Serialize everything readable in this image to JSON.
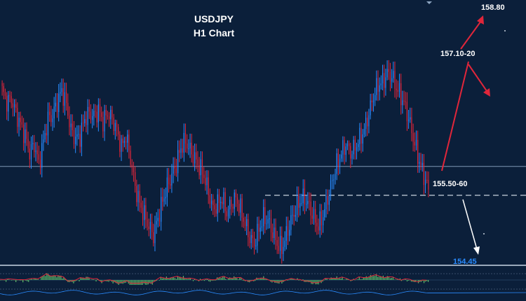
{
  "header": {
    "symbol": "USDJPY",
    "timeframe": "H1 Chart"
  },
  "colors": {
    "background": "#0b1f3a",
    "bull_candle": "#2a8cff",
    "bear_candle": "#e0263a",
    "target_arrow_up": "#e0263a",
    "target_arrow_down": "#ffffff",
    "oscillator_positive": "#5fbf6a",
    "horizontal_line": "#8ea6c2"
  },
  "chart_data": {
    "type": "candlestick",
    "title": "USDJPY H1 Chart",
    "xlabel": "",
    "ylabel": "",
    "ylim": [
      154.4,
      158.9
    ],
    "horizontal_lines": [
      {
        "level": 156.06,
        "style": "solid"
      },
      {
        "level": 155.55,
        "style": "dashed"
      }
    ],
    "annotations": [
      {
        "text": "158.80",
        "value": 158.8,
        "color": "#ffffff",
        "role": "upside-target"
      },
      {
        "text": "157.10-20",
        "value": 157.15,
        "color": "#ffffff",
        "role": "intermediate-target"
      },
      {
        "text": "155.50-60",
        "value": 155.55,
        "color": "#ffffff",
        "role": "support"
      },
      {
        "text": "154.45",
        "value": 154.45,
        "color": "#2a8cff",
        "role": "downside-target"
      }
    ],
    "closes": [
      157.4,
      157.2,
      157.25,
      157.0,
      156.8,
      156.6,
      156.3,
      156.45,
      156.1,
      156.5,
      156.9,
      156.95,
      157.2,
      157.4,
      157.15,
      156.7,
      156.55,
      156.6,
      156.9,
      157.0,
      156.95,
      157.05,
      156.85,
      157.0,
      156.9,
      156.7,
      156.4,
      156.6,
      156.2,
      155.7,
      155.4,
      155.2,
      155.0,
      154.85,
      155.15,
      155.45,
      155.7,
      155.9,
      156.1,
      156.4,
      156.5,
      156.35,
      156.2,
      156.05,
      155.9,
      155.6,
      155.3,
      155.4,
      155.5,
      155.25,
      155.4,
      155.5,
      155.3,
      155.05,
      154.8,
      154.7,
      154.95,
      155.15,
      155.1,
      154.9,
      154.7,
      154.6,
      154.85,
      155.1,
      155.3,
      155.45,
      155.5,
      155.35,
      155.15,
      155.0,
      155.2,
      155.5,
      155.8,
      156.1,
      156.3,
      156.45,
      156.3,
      156.4,
      156.55,
      156.7,
      157.0,
      157.3,
      157.5,
      157.55,
      157.7,
      157.65,
      157.45,
      157.3,
      157.1,
      156.8,
      156.45,
      156.15,
      155.9,
      155.65
    ]
  }
}
